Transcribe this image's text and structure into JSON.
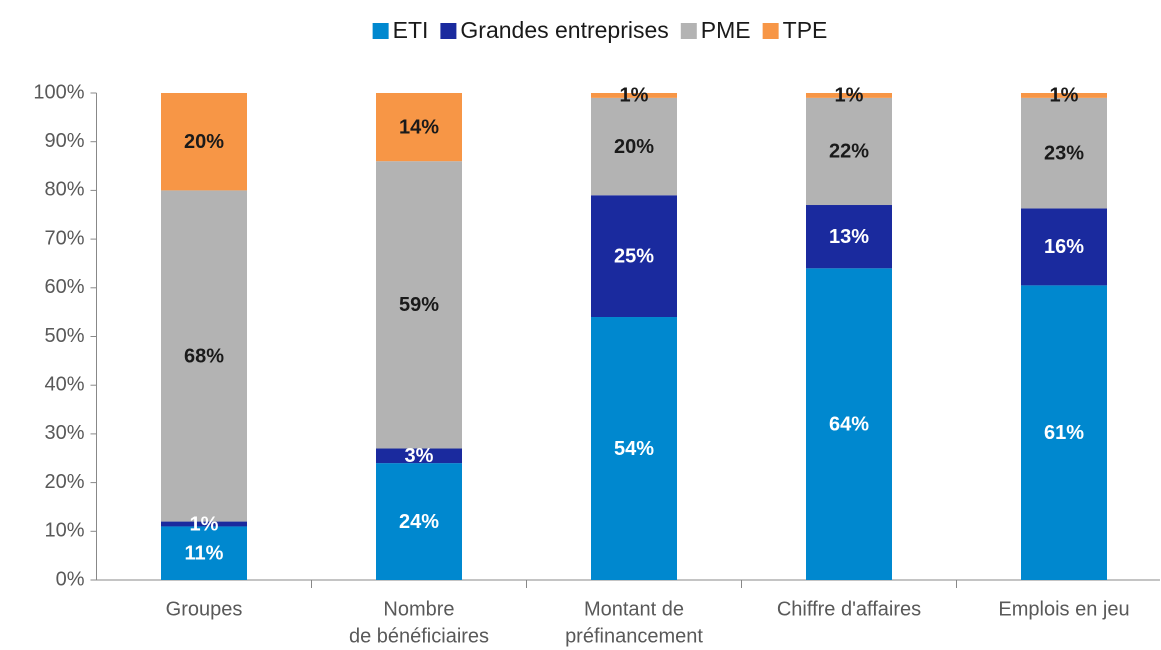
{
  "chart_data": {
    "type": "stacked_bar",
    "categories": [
      "Groupes",
      [
        "Nombre",
        "de bénéficiaires"
      ],
      [
        "Montant de",
        "préfinancement"
      ],
      "Chiffre d'affaires",
      "Emplois en jeu"
    ],
    "series": [
      {
        "name": "ETI",
        "color": "#0088cf",
        "label_color": "#ffffff",
        "values": [
          11,
          24,
          54,
          64,
          60.5
        ],
        "value_labels": [
          "11%",
          "24%",
          "54%",
          "64%",
          "61%"
        ]
      },
      {
        "name": "Grandes entreprises",
        "color": "#1a2a9e",
        "label_color": "#ffffff",
        "values": [
          1,
          3,
          25,
          13,
          15.8
        ],
        "value_labels": [
          "1%",
          "3%",
          "25%",
          "13%",
          "16%"
        ]
      },
      {
        "name": "PME",
        "color": "#b3b3b3",
        "label_color": "#1a1a1a",
        "values": [
          68,
          59,
          20,
          22,
          22.7
        ],
        "value_labels": [
          "68%",
          "59%",
          "20%",
          "22%",
          "23%"
        ]
      },
      {
        "name": "TPE",
        "color": "#f79646",
        "label_color": "#1a1a1a",
        "values": [
          20,
          14,
          1,
          1,
          1
        ],
        "value_labels": [
          "20%",
          "14%",
          "1%",
          "1%",
          "1%"
        ]
      }
    ],
    "ylim": [
      0,
      100
    ],
    "yticks": [
      {
        "value": 0,
        "label": "0%"
      },
      {
        "value": 10,
        "label": "10%"
      },
      {
        "value": 20,
        "label": "20%"
      },
      {
        "value": 30,
        "label": "30%"
      },
      {
        "value": 40,
        "label": "40%"
      },
      {
        "value": 50,
        "label": "50%"
      },
      {
        "value": 60,
        "label": "60%"
      },
      {
        "value": 70,
        "label": "70%"
      },
      {
        "value": 80,
        "label": "80%"
      },
      {
        "value": 90,
        "label": "90%"
      },
      {
        "value": 100,
        "label": "100%"
      }
    ],
    "legend": "top"
  }
}
